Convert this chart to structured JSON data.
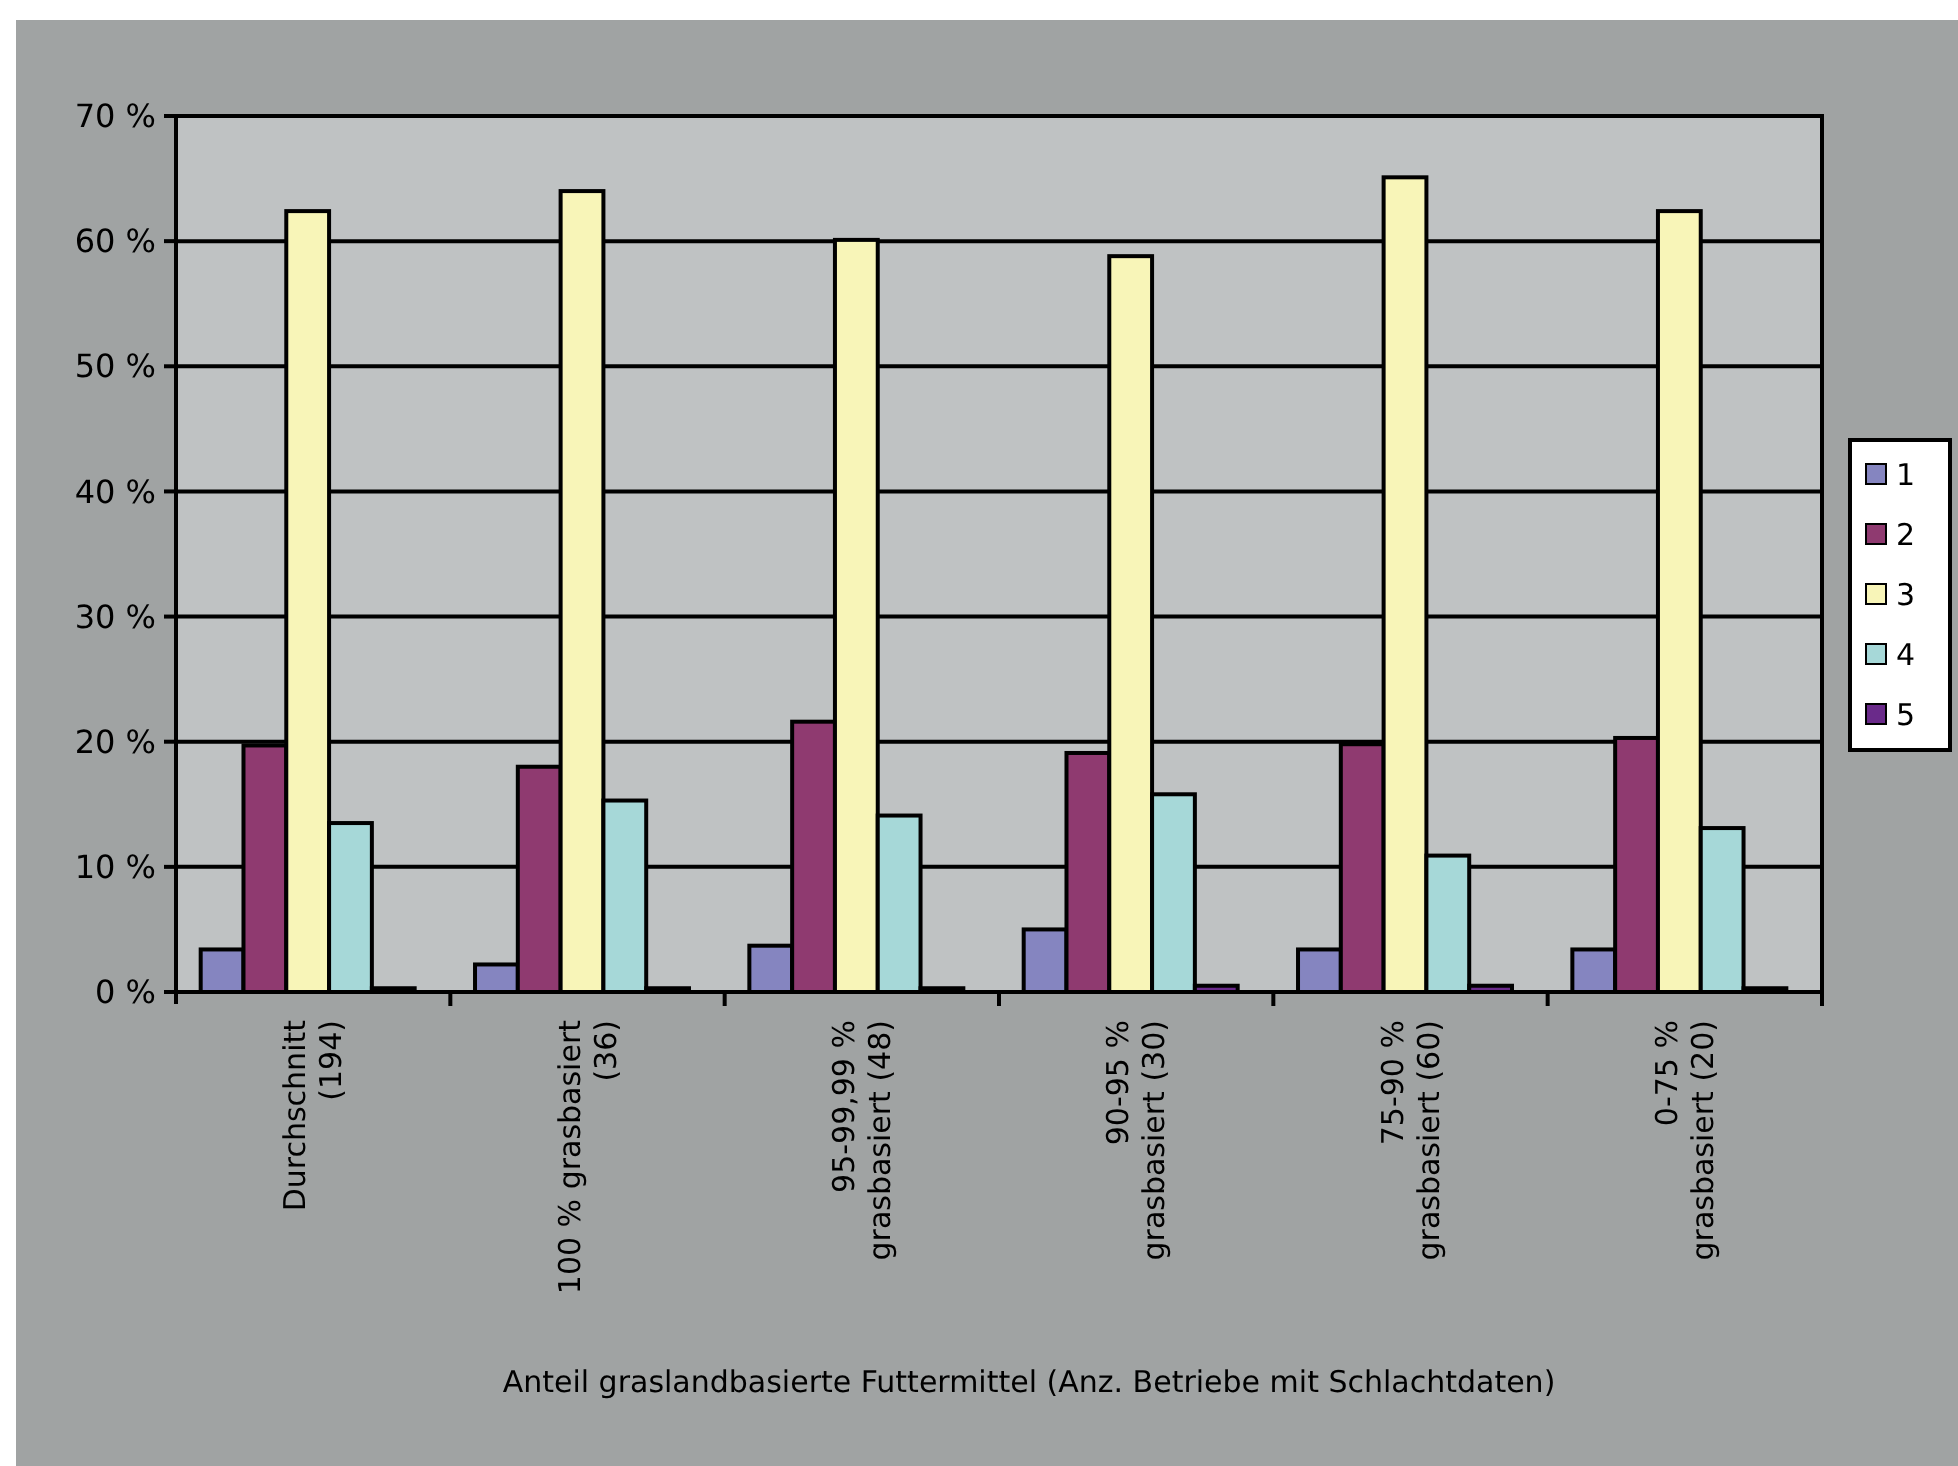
{
  "chart_data": {
    "type": "bar",
    "xlabel": "Anteil graslandbasierte Futtermittel (Anz. Betriebe mit Schlachtdaten)",
    "categories": [
      "Durchschnitt\n(194)",
      "100 % grasbasiert\n(36)",
      "95-99,99 %\ngrasbasiert (48)",
      "90-95 %\ngrasbasiert (30)",
      "75-90 %\ngrasbasiert (60)",
      "0-75 %\ngrasbasiert (20)"
    ],
    "series": [
      {
        "name": "1",
        "color": "#8585c0",
        "values": [
          3.4,
          2.2,
          3.7,
          5.0,
          3.4,
          3.4
        ]
      },
      {
        "name": "2",
        "color": "#8f3a70",
        "values": [
          19.7,
          18.0,
          21.6,
          19.1,
          19.8,
          20.3
        ]
      },
      {
        "name": "3",
        "color": "#f8f5b8",
        "values": [
          62.4,
          64.0,
          60.1,
          58.8,
          65.1,
          62.4
        ]
      },
      {
        "name": "4",
        "color": "#a6d8d8",
        "values": [
          13.5,
          15.3,
          14.1,
          15.8,
          10.9,
          13.1
        ]
      },
      {
        "name": "5",
        "color": "#6a2a8a",
        "values": [
          0.3,
          0.3,
          0.3,
          0.5,
          0.5,
          0.3
        ]
      }
    ],
    "ylim": [
      0,
      70
    ],
    "yticks": [
      {
        "value": 0,
        "label": "0 %"
      },
      {
        "value": 10,
        "label": "10 %"
      },
      {
        "value": 20,
        "label": "20 %"
      },
      {
        "value": 30,
        "label": "30 %"
      },
      {
        "value": 40,
        "label": "40 %"
      },
      {
        "value": 50,
        "label": "50 %"
      },
      {
        "value": 60,
        "label": "60 %"
      },
      {
        "value": 70,
        "label": "70 %"
      }
    ],
    "grid": "y",
    "legend": "right"
  }
}
